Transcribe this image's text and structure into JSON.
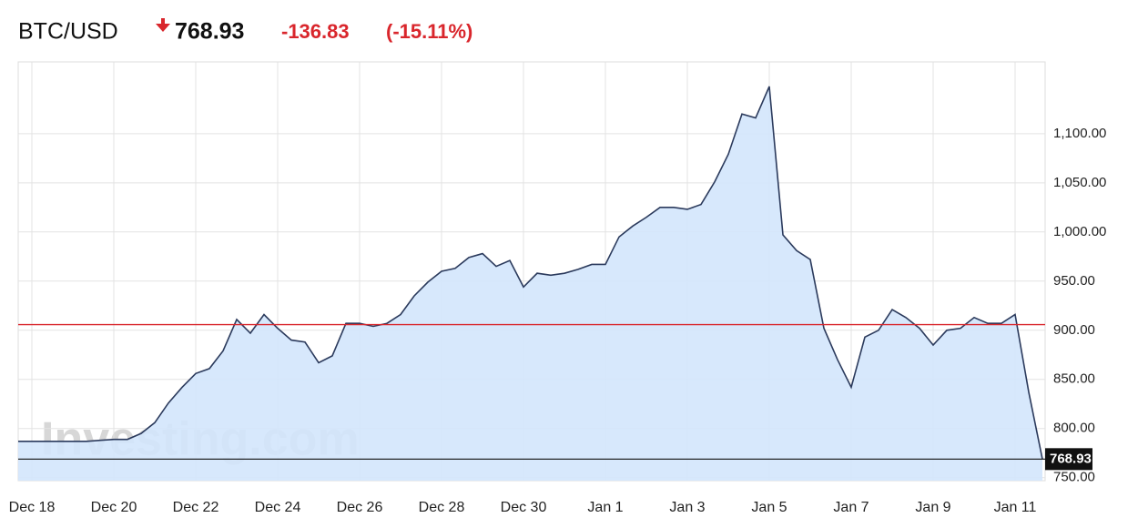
{
  "chart_data": {
    "type": "area",
    "title": "BTC/USD",
    "change": "-136.83",
    "change_pct": "(-15.11%)",
    "watermark": "Investing.com",
    "categories": [
      null,
      "Dec 18",
      null,
      null,
      null,
      null,
      null,
      "Dec 20",
      null,
      null,
      null,
      null,
      null,
      "Dec 22",
      null,
      null,
      null,
      null,
      null,
      "Dec 24",
      null,
      null,
      null,
      null,
      null,
      "Dec 26",
      null,
      null,
      null,
      null,
      null,
      "Dec 28",
      null,
      null,
      null,
      null,
      null,
      "Dec 30",
      null,
      null,
      null,
      null,
      null,
      "Jan 1",
      null,
      null,
      null,
      null,
      null,
      "Jan 3",
      null,
      null,
      null,
      null,
      null,
      "Jan 5",
      null,
      null,
      null,
      null,
      null,
      "Jan 7",
      null,
      null,
      null,
      null,
      null,
      "Jan 9",
      null,
      null,
      null,
      null,
      null,
      "Jan 11",
      null,
      null
    ],
    "series": [
      {
        "name": "BTC/USD",
        "color": "#2b3a5c",
        "fill": "#d3e5fc",
        "values": [
          787,
          787,
          787,
          787,
          787,
          787,
          788,
          789,
          789,
          795,
          806,
          826,
          842,
          856,
          861,
          879,
          911,
          897,
          916,
          902,
          890,
          888,
          867,
          874,
          907,
          907,
          904,
          907,
          916,
          935,
          949,
          960,
          963,
          974,
          978,
          965,
          971,
          944,
          958,
          956,
          958,
          962,
          967,
          967,
          995,
          1006,
          1015,
          1025,
          1025,
          1023,
          1028,
          1051,
          1079,
          1120,
          1116,
          1148,
          997,
          981,
          972,
          902,
          870,
          842,
          893,
          900,
          921,
          913,
          902,
          885,
          900,
          902,
          913,
          907,
          907,
          916,
          837,
          768.93
        ]
      }
    ],
    "reference_line": {
      "value": 905.76,
      "color": "#d9262c"
    },
    "ylim": [
      747,
      1173
    ],
    "yticks": [
      {
        "value": 750,
        "label": "750.00"
      },
      {
        "value": 800,
        "label": "800.00"
      },
      {
        "value": 850,
        "label": "850.00"
      },
      {
        "value": 900,
        "label": "900.00"
      },
      {
        "value": 950,
        "label": "950.00"
      },
      {
        "value": 1000,
        "label": "1,000.00"
      },
      {
        "value": 1050,
        "label": "1,050.00"
      },
      {
        "value": 1100,
        "label": "1,100.00"
      }
    ],
    "grid": true
  }
}
